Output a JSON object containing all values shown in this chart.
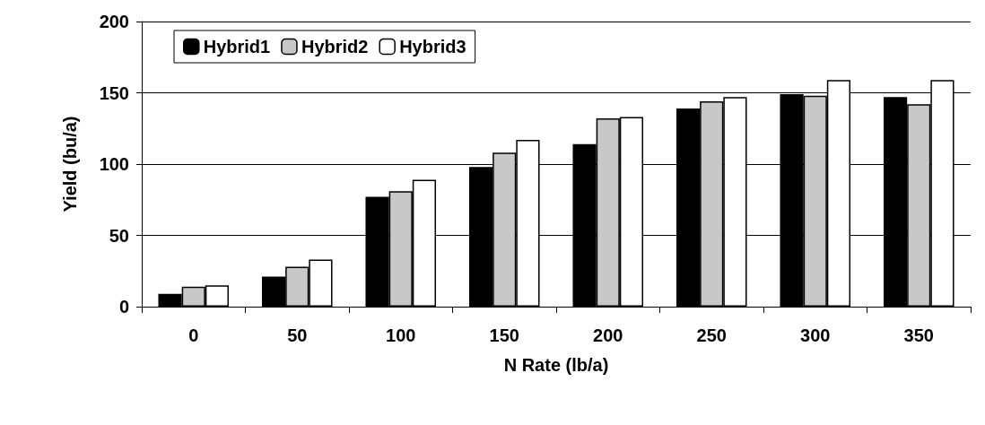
{
  "chart_data": {
    "type": "bar",
    "xlabel": "N Rate (lb/a)",
    "ylabel": "Yield (bu/a)",
    "categories": [
      "0",
      "50",
      "100",
      "150",
      "200",
      "250",
      "300",
      "350"
    ],
    "series": [
      {
        "name": "Hybrid1",
        "color": "#000000",
        "values": [
          9,
          21,
          77,
          98,
          114,
          139,
          149,
          147
        ]
      },
      {
        "name": "Hybrid2",
        "color": "#c8c8c8",
        "values": [
          14,
          28,
          81,
          108,
          132,
          144,
          148,
          142
        ]
      },
      {
        "name": "Hybrid3",
        "color": "#ffffff",
        "values": [
          15,
          33,
          89,
          117,
          133,
          147,
          159,
          159
        ]
      }
    ],
    "ylim": [
      0,
      200
    ],
    "yticks": [
      0,
      50,
      100,
      150,
      200
    ],
    "grid": "y",
    "legend": "top left"
  }
}
